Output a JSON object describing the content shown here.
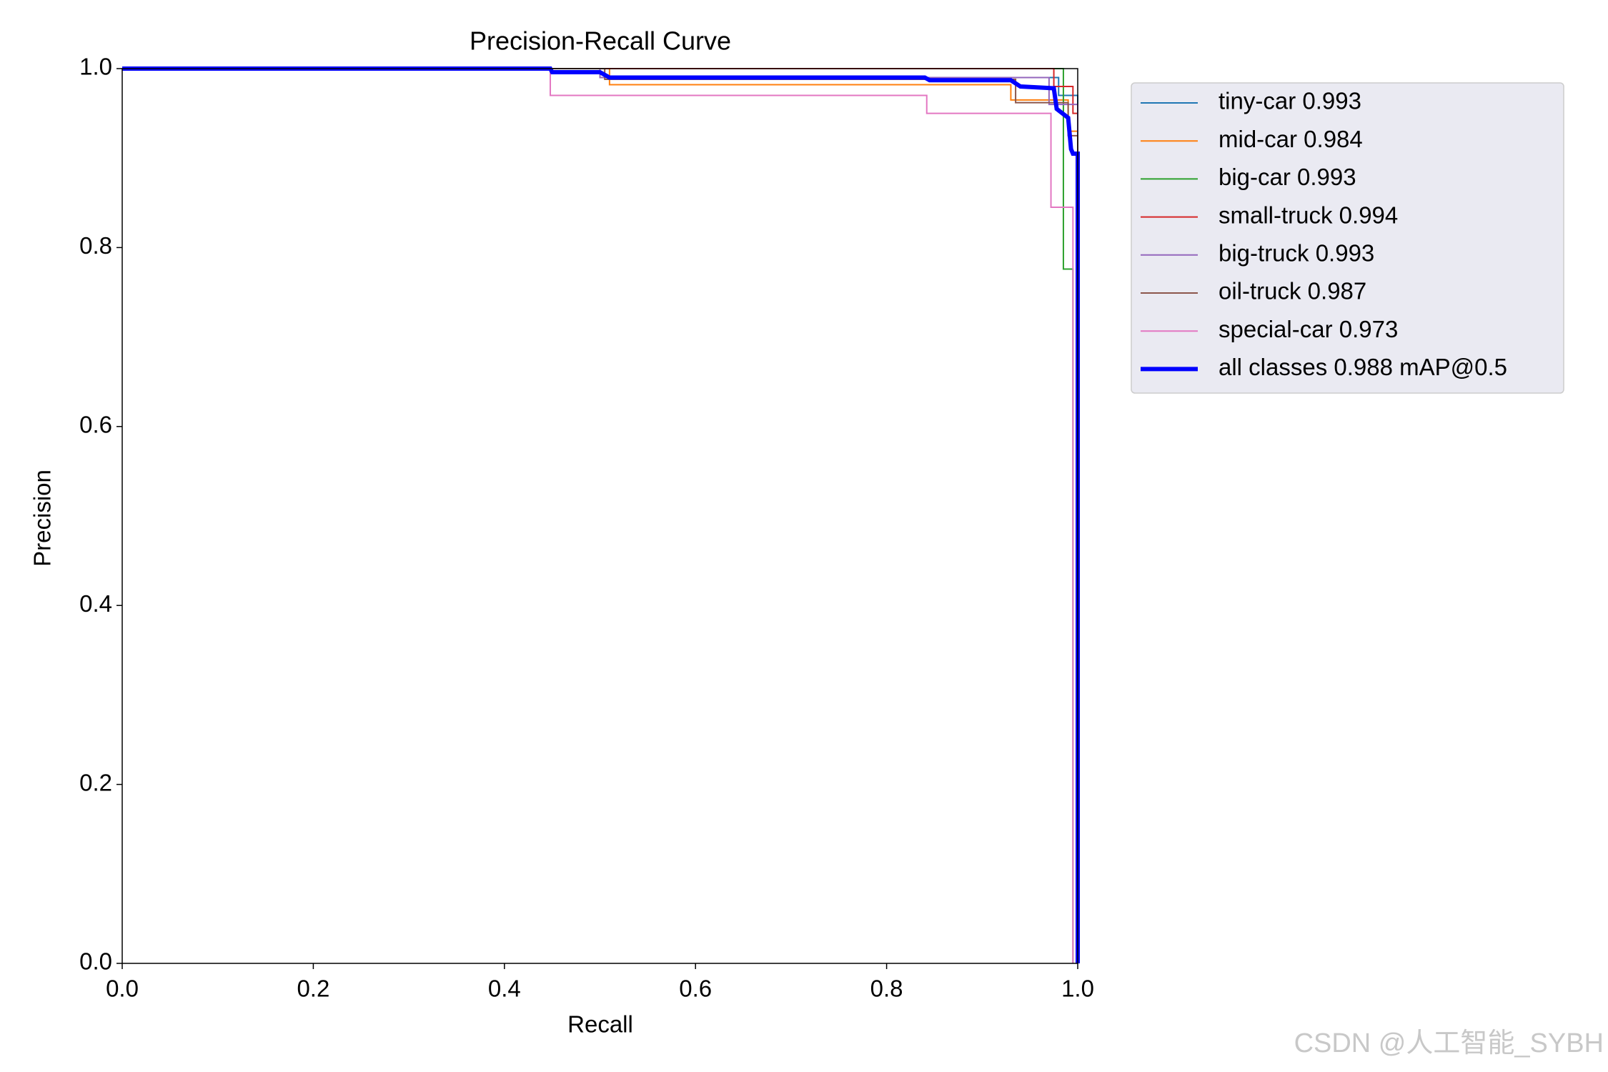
{
  "chart_data": {
    "type": "line",
    "title": "Precision-Recall Curve",
    "x_label": "Recall",
    "y_label": "Precision",
    "xlim": [
      0,
      1
    ],
    "ylim": [
      0,
      1
    ],
    "xticks": [
      {
        "value": 0,
        "label": "0.0"
      },
      0.2,
      0.4,
      0.6,
      0.8,
      {
        "value": 1,
        "label": "1.0"
      }
    ],
    "yticks": [
      {
        "value": 0,
        "label": "0.0"
      },
      0.2,
      0.4,
      0.6,
      0.8,
      {
        "value": 1,
        "label": "1.0"
      }
    ],
    "legend": "outside-upper-right",
    "watermark": "CSDN @人工智能_SYBH",
    "series": [
      {
        "name": "tiny-car 0.993",
        "color": "#1f77b4",
        "x": [
          0,
          0.5,
          0.5,
          0.98,
          0.98,
          1,
          1
        ],
        "values": [
          1,
          1,
          0.99,
          0.99,
          0.97,
          0.97,
          0
        ]
      },
      {
        "name": "mid-car 0.984",
        "color": "#ff7f0e",
        "x": [
          0,
          0.51,
          0.51,
          0.93,
          0.93,
          0.99,
          0.99,
          1,
          1
        ],
        "values": [
          1,
          1,
          0.982,
          0.982,
          0.965,
          0.965,
          0.93,
          0.93,
          0
        ]
      },
      {
        "name": "big-car 0.993",
        "color": "#2ca02c",
        "x": [
          0,
          0.985,
          0.985,
          0.995,
          0.995
        ],
        "values": [
          1,
          1,
          0.776,
          0.776,
          0
        ]
      },
      {
        "name": "small-truck 0.994",
        "color": "#d62728",
        "x": [
          0,
          0.975,
          0.975,
          0.995,
          0.995,
          1,
          1
        ],
        "values": [
          1,
          1,
          0.98,
          0.98,
          0.95,
          0.95,
          0
        ]
      },
      {
        "name": "big-truck 0.993",
        "color": "#9467bd",
        "x": [
          0,
          0.5,
          0.5,
          0.97,
          0.97,
          1,
          1
        ],
        "values": [
          1,
          1,
          0.99,
          0.99,
          0.96,
          0.96,
          0
        ]
      },
      {
        "name": "oil-truck 0.987",
        "color": "#8c564b",
        "x": [
          0,
          0.505,
          0.505,
          0.935,
          0.935,
          0.99,
          0.99,
          1,
          1
        ],
        "values": [
          1,
          1,
          0.988,
          0.988,
          0.962,
          0.962,
          0.925,
          0.925,
          0
        ]
      },
      {
        "name": "special-car 0.973",
        "color": "#e377c2",
        "x": [
          0,
          0.448,
          0.448,
          0.842,
          0.842,
          0.972,
          0.972,
          0.995,
          0.995
        ],
        "values": [
          1,
          1,
          0.97,
          0.97,
          0.95,
          0.95,
          0.845,
          0.845,
          0
        ]
      },
      {
        "name": "all classes 0.988 mAP@0.5",
        "color": "#0000ff",
        "x": [
          0,
          0.448,
          0.45,
          0.5,
          0.51,
          0.84,
          0.845,
          0.93,
          0.94,
          0.975,
          0.978,
          0.99,
          0.993,
          0.995,
          1,
          1
        ],
        "values": [
          1,
          1,
          0.996,
          0.996,
          0.99,
          0.99,
          0.987,
          0.987,
          0.98,
          0.978,
          0.955,
          0.945,
          0.91,
          0.905,
          0.905,
          0
        ]
      }
    ]
  }
}
